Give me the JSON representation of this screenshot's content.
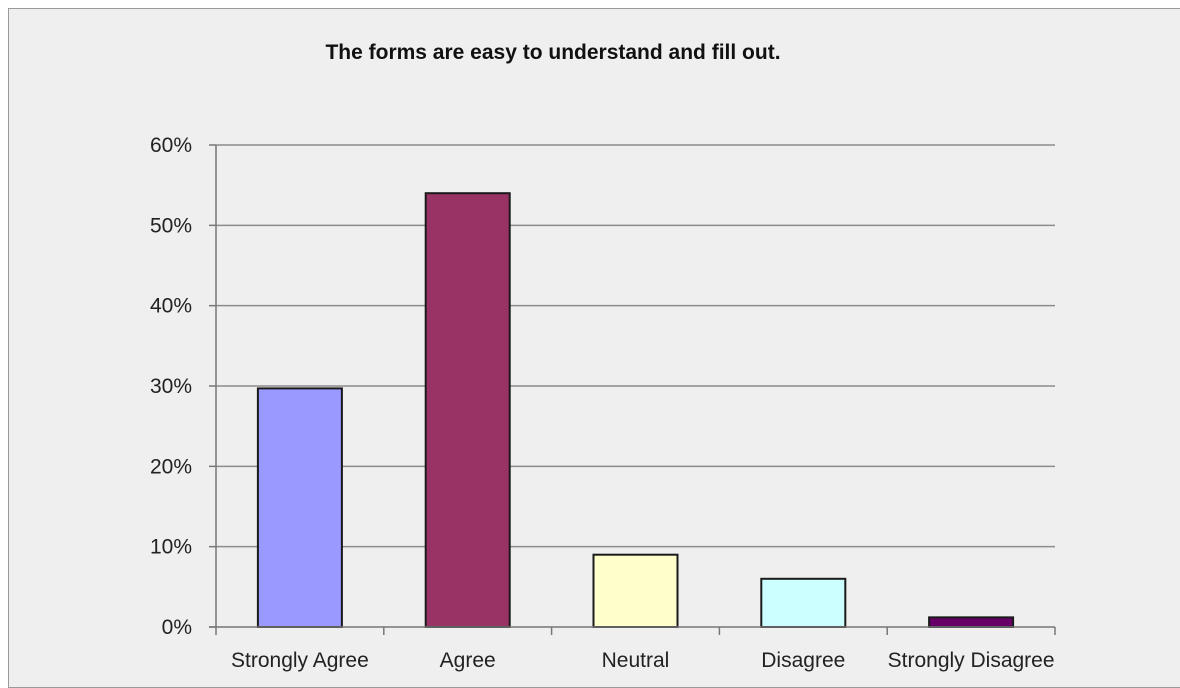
{
  "chart_data": {
    "type": "bar",
    "title": "The forms are easy to understand and fill out.",
    "xlabel": "",
    "ylabel": "",
    "categories": [
      "Strongly Agree",
      "Agree",
      "Neutral",
      "Disagree",
      "Strongly Disagree"
    ],
    "values": [
      0.297,
      0.54,
      0.09,
      0.06,
      0.012
    ],
    "colors": [
      "#9999ff",
      "#993366",
      "#ffffcc",
      "#ccffff",
      "#660066"
    ],
    "ylim": [
      0,
      0.6
    ],
    "yticks": [
      0,
      0.1,
      0.2,
      0.3,
      0.4,
      0.5,
      0.6
    ],
    "ytick_labels": [
      "0%",
      "10%",
      "20%",
      "30%",
      "40%",
      "50%",
      "60%"
    ],
    "grid": true,
    "legend": "none"
  }
}
